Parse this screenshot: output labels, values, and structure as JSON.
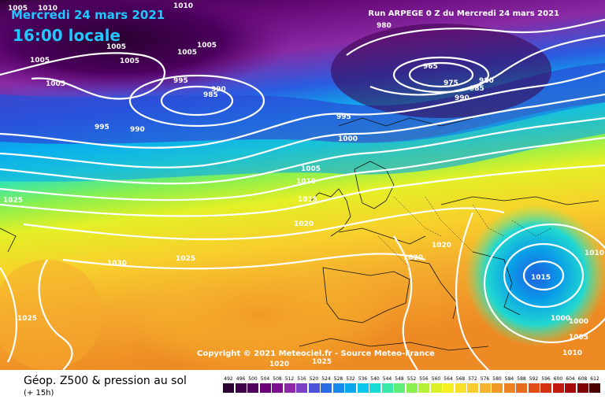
{
  "header": {
    "date": "Mercredi 24 mars 2021",
    "time": "16:00 locale",
    "run": "Run ARPEGE 0 Z du Mercredi 24 mars 2021",
    "copyright": "Copyright © 2021 Meteociel.fr - Source Meteo-France"
  },
  "footer": {
    "title": "Géop. Z500 & pression au sol",
    "subtitle": "(+ 15h)"
  },
  "isobar_labels": [
    "1005",
    "1010",
    "1010",
    "1005",
    "1005",
    "1005",
    "1005",
    "1005",
    "995",
    "985",
    "990",
    "995",
    "990",
    "1005",
    "980",
    "965",
    "975",
    "980",
    "985",
    "990",
    "995",
    "1000",
    "1005",
    "1010",
    "1015",
    "1020",
    "1025",
    "1030",
    "1025",
    "1020",
    "1020",
    "1025",
    "1025",
    "1020",
    "1015",
    "1010",
    "1000",
    "1000",
    "1005",
    "1010"
  ],
  "legend": {
    "values": [
      "492",
      "496",
      "500",
      "504",
      "508",
      "512",
      "516",
      "520",
      "524",
      "528",
      "532",
      "536",
      "540",
      "544",
      "548",
      "552",
      "556",
      "560",
      "564",
      "568",
      "572",
      "576",
      "580",
      "584",
      "588",
      "592",
      "596",
      "600",
      "604",
      "608",
      "612"
    ],
    "colors": [
      "#2b0033",
      "#3d0046",
      "#52005d",
      "#6a0078",
      "#7e1090",
      "#8e2aa8",
      "#7a3fc4",
      "#4c53d8",
      "#2a6ce4",
      "#1689ea",
      "#0aa8ef",
      "#0ac6ee",
      "#16dcd4",
      "#38e8a8",
      "#5cee78",
      "#8af04e",
      "#b6f038",
      "#dcf026",
      "#f6f020",
      "#f8e02a",
      "#f8cc2e",
      "#f6b42e",
      "#f29a28",
      "#ee8222",
      "#e86a1c",
      "#e04e16",
      "#d43012",
      "#c21810",
      "#a60a0a",
      "#7c0404",
      "#4a0000"
    ]
  }
}
